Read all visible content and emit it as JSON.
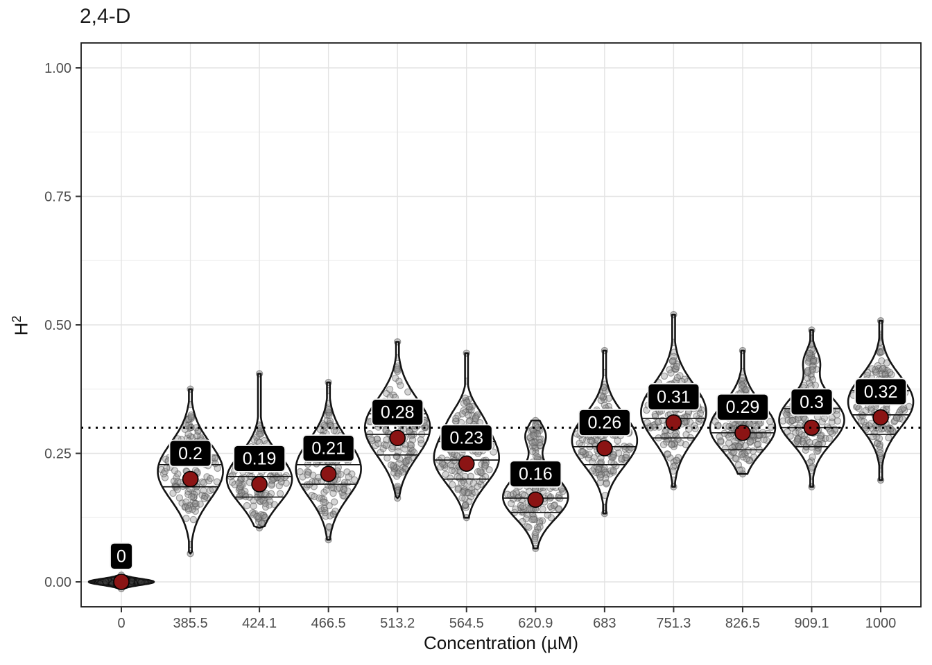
{
  "title": "2,4-D",
  "chart_data": {
    "type": "violin",
    "title": "2,4-D",
    "xlabel": "Concentration (µM)",
    "ylabel_base": "H",
    "ylabel_sup": "2",
    "ylabel": "H2",
    "ylim": [
      -0.05,
      1.05
    ],
    "yticks": [
      0,
      0.25,
      0.5,
      0.75,
      1
    ],
    "ytick_labels": [
      "0.00",
      "0.25",
      "0.50",
      "0.75",
      "1.00"
    ],
    "minor_yticks": [
      0.125,
      0.375,
      0.625,
      0.875
    ],
    "grid": true,
    "legend": "none",
    "reference_line_y": 0.3,
    "categories": [
      "0",
      "385.5",
      "424.1",
      "466.5",
      "513.2",
      "564.5",
      "620.9",
      "683",
      "751.3",
      "826.5",
      "909.1",
      "1000"
    ],
    "means": [
      0,
      0.2,
      0.19,
      0.21,
      0.28,
      0.23,
      0.16,
      0.26,
      0.31,
      0.29,
      0.3,
      0.32
    ],
    "mean_labels": [
      "0",
      "0.2",
      "0.19",
      "0.21",
      "0.28",
      "0.23",
      "0.16",
      "0.26",
      "0.31",
      "0.29",
      "0.3",
      "0.32"
    ],
    "label_offset_y": 0.05,
    "violins": [
      {
        "min": -0.013,
        "max": 0.013,
        "flat": true,
        "components": [
          {
            "mode": 0,
            "sigma": 0.006,
            "amp": 1
          }
        ],
        "quartiles": []
      },
      {
        "min": 0.055,
        "max": 0.375,
        "components": [
          {
            "mode": 0.215,
            "sigma": 0.055,
            "amp": 1
          }
        ],
        "quartiles": [
          0.185,
          0.228,
          0.272
        ]
      },
      {
        "min": 0.105,
        "max": 0.405,
        "components": [
          {
            "mode": 0.2,
            "sigma": 0.048,
            "amp": 1
          }
        ],
        "quartiles": [
          0.165,
          0.205,
          0.25
        ]
      },
      {
        "min": 0.082,
        "max": 0.388,
        "components": [
          {
            "mode": 0.22,
            "sigma": 0.055,
            "amp": 1
          }
        ],
        "quartiles": [
          0.19,
          0.228,
          0.268
        ]
      },
      {
        "min": 0.163,
        "max": 0.467,
        "components": [
          {
            "mode": 0.3,
            "sigma": 0.056,
            "amp": 1
          }
        ],
        "quartiles": [
          0.247,
          0.287,
          0.327
        ]
      },
      {
        "min": 0.125,
        "max": 0.445,
        "components": [
          {
            "mode": 0.24,
            "sigma": 0.05,
            "amp": 1
          },
          {
            "mode": 0.32,
            "sigma": 0.03,
            "amp": 0.25
          }
        ],
        "quartiles": [
          0.2,
          0.237,
          0.273
        ]
      },
      {
        "min": 0.065,
        "max": 0.314,
        "components": [
          {
            "mode": 0.165,
            "sigma": 0.042,
            "amp": 1
          },
          {
            "mode": 0.285,
            "sigma": 0.022,
            "amp": 0.3
          }
        ],
        "quartiles": [
          0.135,
          0.163,
          0.203
        ]
      },
      {
        "min": 0.133,
        "max": 0.45,
        "components": [
          {
            "mode": 0.275,
            "sigma": 0.05,
            "amp": 1
          }
        ],
        "quartiles": [
          0.228,
          0.263,
          0.303
        ]
      },
      {
        "min": 0.185,
        "max": 0.52,
        "components": [
          {
            "mode": 0.33,
            "sigma": 0.055,
            "amp": 1
          }
        ],
        "quartiles": [
          0.28,
          0.318,
          0.36
        ]
      },
      {
        "min": 0.21,
        "max": 0.45,
        "components": [
          {
            "mode": 0.3,
            "sigma": 0.046,
            "amp": 1
          }
        ],
        "quartiles": [
          0.257,
          0.29,
          0.327
        ]
      },
      {
        "min": 0.185,
        "max": 0.49,
        "components": [
          {
            "mode": 0.315,
            "sigma": 0.045,
            "amp": 1
          },
          {
            "mode": 0.43,
            "sigma": 0.022,
            "amp": 0.22
          }
        ],
        "quartiles": [
          0.263,
          0.3,
          0.337
        ]
      },
      {
        "min": 0.198,
        "max": 0.508,
        "components": [
          {
            "mode": 0.35,
            "sigma": 0.05,
            "amp": 1
          }
        ],
        "quartiles": [
          0.287,
          0.325,
          0.372
        ]
      }
    ],
    "colors": {
      "mean_point": "#8B1414",
      "label_bg": "#000000",
      "label_text": "#FFFFFF",
      "label_border": "#F5F5F5",
      "violin_outline": "#141414",
      "violin_fill": "#FFFFFF",
      "flat_violin_fill": "#1C1C1C",
      "grid_major": "#E3E3E3",
      "grid_minor": "#ECECEC",
      "axis_text": "#4D4D4D",
      "axis_tick": "#333333",
      "panel_border": "#1A1A1A",
      "ref_line": "#000000",
      "point_fill": "#969696",
      "point_stroke": "#4A4A4A"
    }
  }
}
